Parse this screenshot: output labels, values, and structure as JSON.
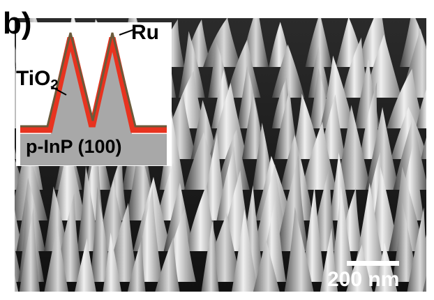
{
  "figure": {
    "panel_label": "b)",
    "inset": {
      "top_layer_label": "Ru",
      "middle_layer_label_main": "TiO",
      "middle_layer_label_sub": "2",
      "substrate_label": "p-InP (100)",
      "colors": {
        "substrate": "#a8a8a8",
        "tio2_layer": "#e8331f",
        "ru_layer": "#6b5a3a"
      }
    },
    "scale_bar": {
      "label": "200 nm",
      "color": "#ffffff"
    },
    "image_description_colors": {
      "background_shadow": "#1c1c1c",
      "peak_highlight": "#f2f2f2"
    }
  }
}
